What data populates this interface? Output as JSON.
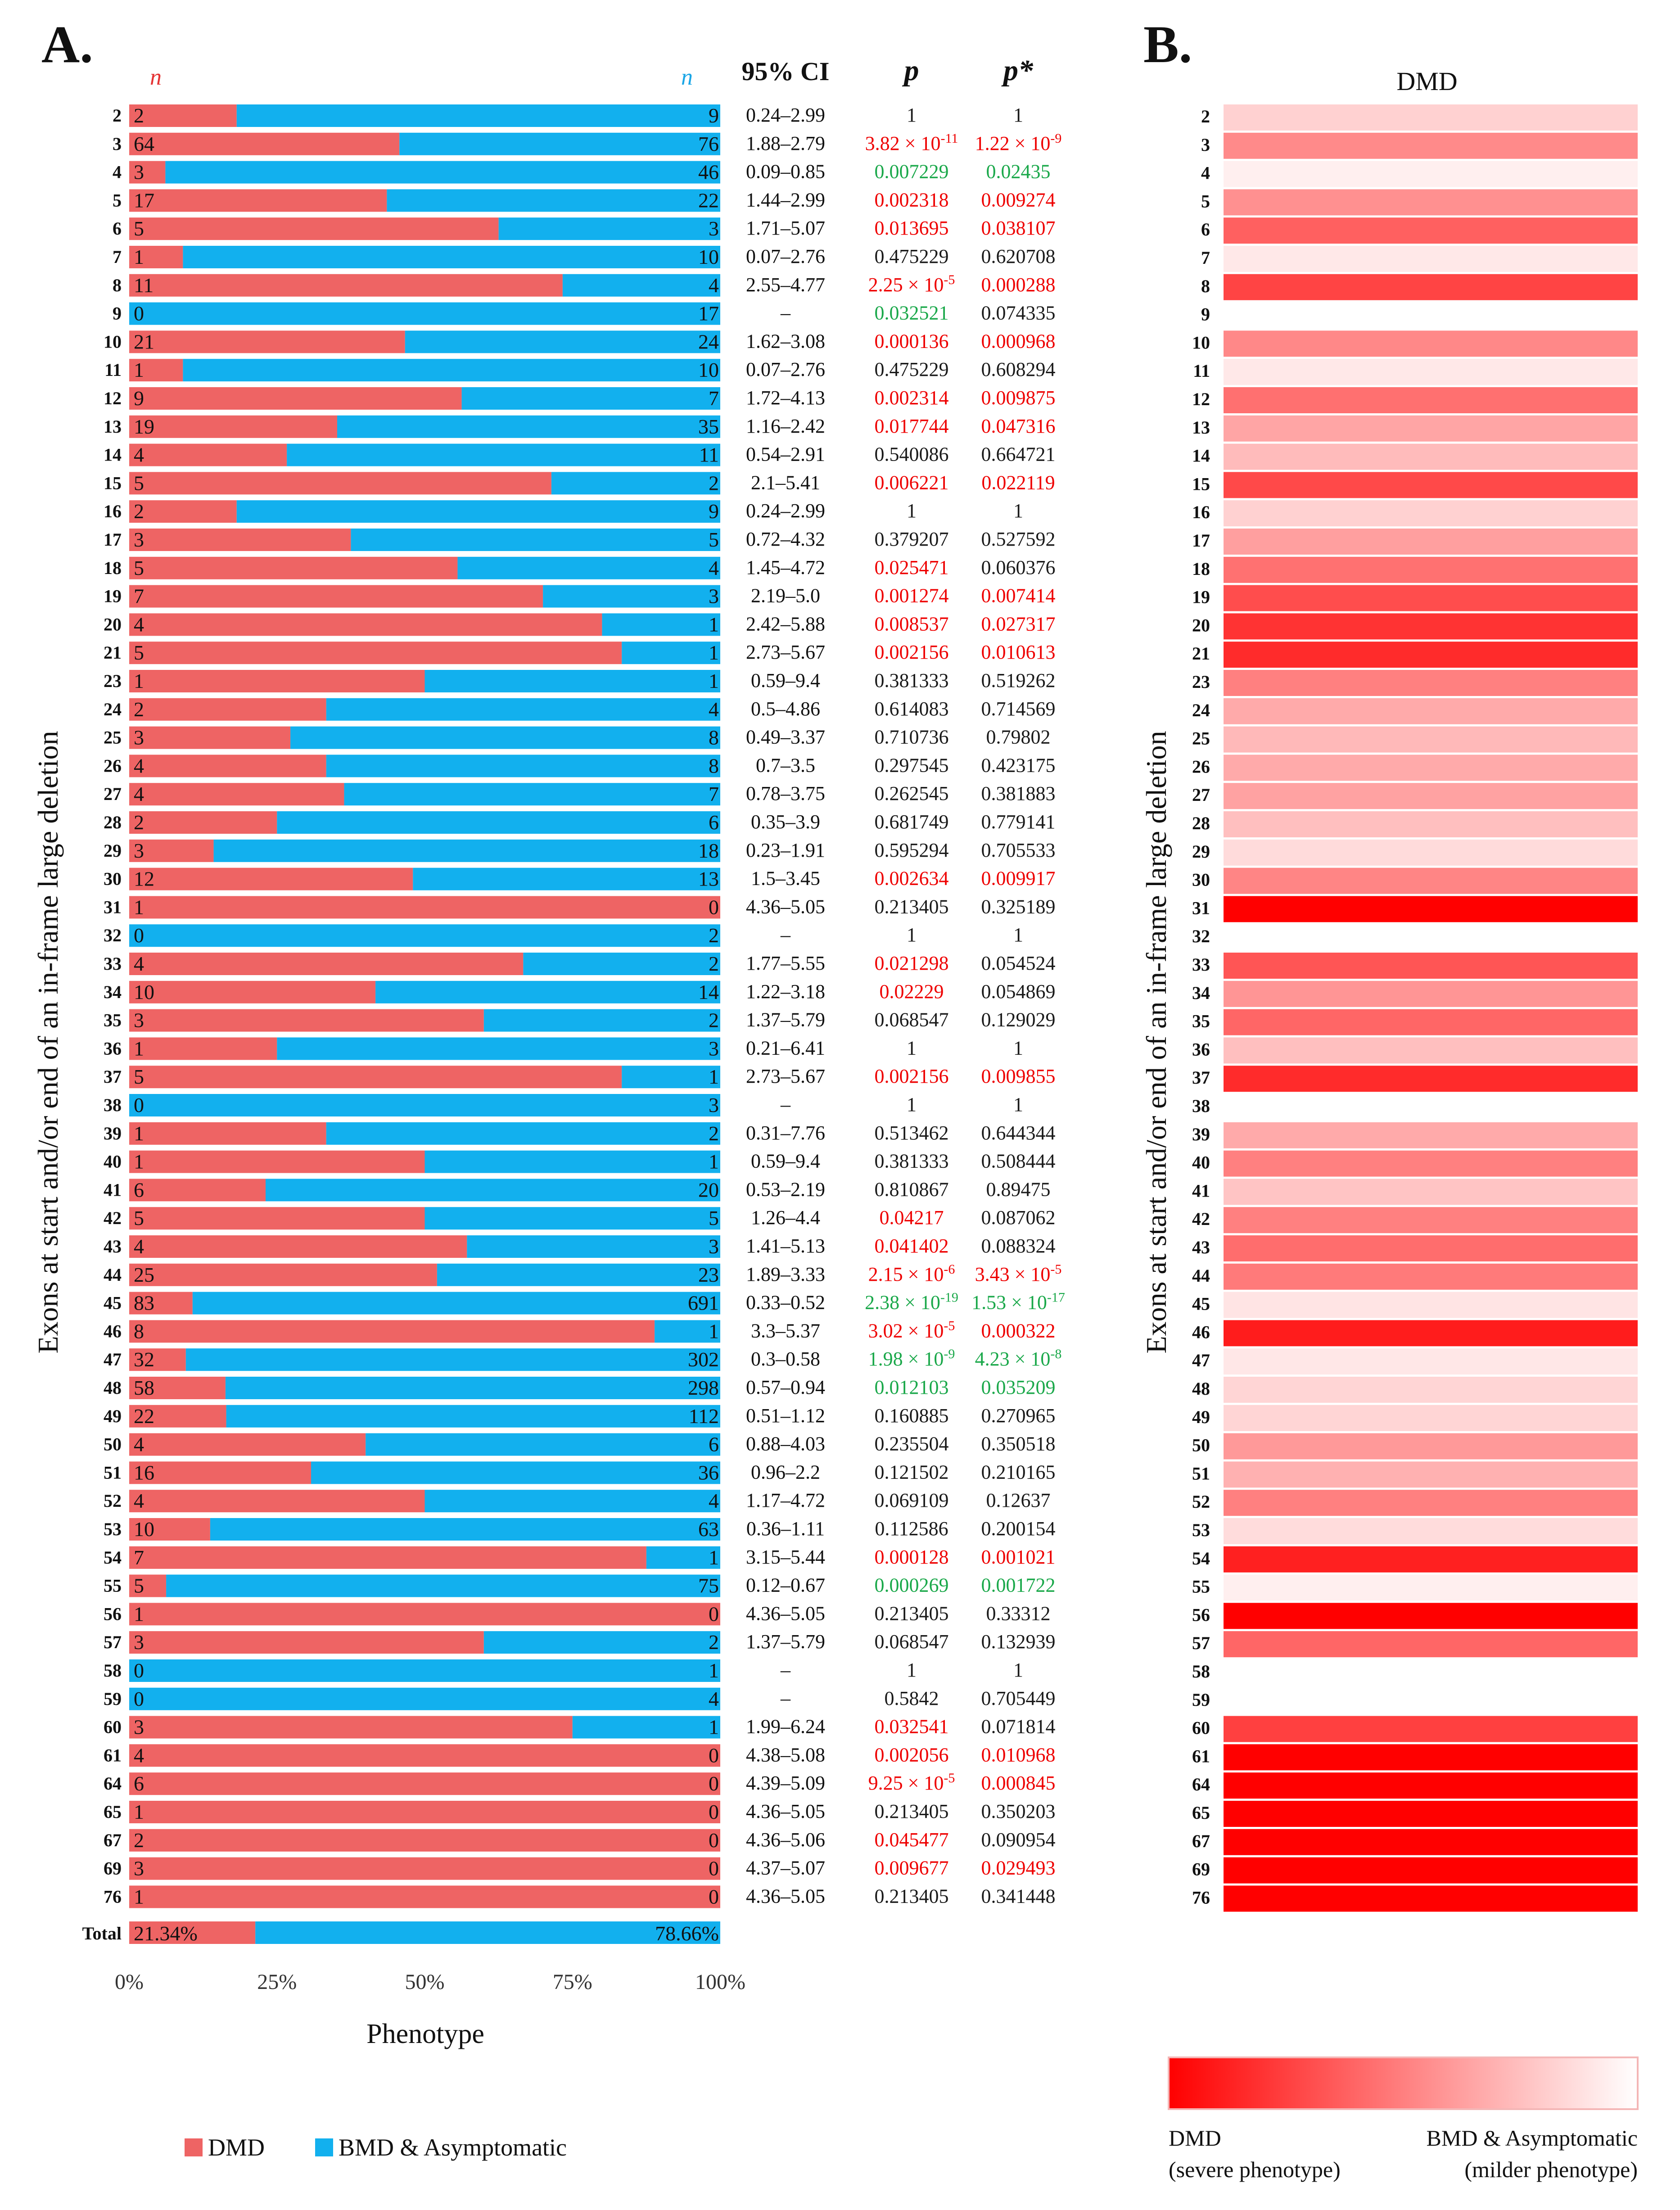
{
  "panel_a_label": "A.",
  "panel_b_label": "B.",
  "chart_data": [
    {
      "type": "bar",
      "stacked": true,
      "orientation": "horizontal",
      "ylabel": "Exons at start and/or end of an in-frame large deletion",
      "xlabel": "Phenotype",
      "xticks": [
        "0%",
        "25%",
        "50%",
        "75%",
        "100%"
      ],
      "n_left_header": "n",
      "n_right_header": "n",
      "columns": {
        "ci": "95% CI",
        "p": "p",
        "padj": "p*"
      },
      "legend": [
        "DMD",
        "BMD & Asymptomatic"
      ],
      "colors": {
        "dmd": "#ee6464",
        "bmd": "#12b0ee",
        "sig_high": "#ee0000",
        "sig_low": "#1aa84a",
        "ns": "#1a1a1a",
        "n_left": "#e53333",
        "n_right": "#1aa6e6"
      },
      "rows": [
        {
          "exon": "2",
          "dmd": 2,
          "bmd": 9,
          "ci": "0.24–2.99",
          "p": "1",
          "padj": "1",
          "p_sig": "ns",
          "padj_sig": "ns"
        },
        {
          "exon": "3",
          "dmd": 64,
          "bmd": 76,
          "ci": "1.88–2.79",
          "p": "3.82 × 10-11",
          "padj": "1.22 × 10-9",
          "p_sig": "high",
          "padj_sig": "high"
        },
        {
          "exon": "4",
          "dmd": 3,
          "bmd": 46,
          "ci": "0.09–0.85",
          "p": "0.007229",
          "padj": "0.02435",
          "p_sig": "low",
          "padj_sig": "low"
        },
        {
          "exon": "5",
          "dmd": 17,
          "bmd": 22,
          "ci": "1.44–2.99",
          "p": "0.002318",
          "padj": "0.009274",
          "p_sig": "high",
          "padj_sig": "high"
        },
        {
          "exon": "6",
          "dmd": 5,
          "bmd": 3,
          "ci": "1.71–5.07",
          "p": "0.013695",
          "padj": "0.038107",
          "p_sig": "high",
          "padj_sig": "high"
        },
        {
          "exon": "7",
          "dmd": 1,
          "bmd": 10,
          "ci": "0.07–2.76",
          "p": "0.475229",
          "padj": "0.620708",
          "p_sig": "ns",
          "padj_sig": "ns"
        },
        {
          "exon": "8",
          "dmd": 11,
          "bmd": 4,
          "ci": "2.55–4.77",
          "p": "2.25 × 10-5",
          "padj": "0.000288",
          "p_sig": "high",
          "padj_sig": "high"
        },
        {
          "exon": "9",
          "dmd": 0,
          "bmd": 17,
          "ci": "–",
          "p": "0.032521",
          "padj": "0.074335",
          "p_sig": "low",
          "padj_sig": "ns"
        },
        {
          "exon": "10",
          "dmd": 21,
          "bmd": 24,
          "ci": "1.62–3.08",
          "p": "0.000136",
          "padj": "0.000968",
          "p_sig": "high",
          "padj_sig": "high"
        },
        {
          "exon": "11",
          "dmd": 1,
          "bmd": 10,
          "ci": "0.07–2.76",
          "p": "0.475229",
          "padj": "0.608294",
          "p_sig": "ns",
          "padj_sig": "ns"
        },
        {
          "exon": "12",
          "dmd": 9,
          "bmd": 7,
          "ci": "1.72–4.13",
          "p": "0.002314",
          "padj": "0.009875",
          "p_sig": "high",
          "padj_sig": "high"
        },
        {
          "exon": "13",
          "dmd": 19,
          "bmd": 35,
          "ci": "1.16–2.42",
          "p": "0.017744",
          "padj": "0.047316",
          "p_sig": "high",
          "padj_sig": "high"
        },
        {
          "exon": "14",
          "dmd": 4,
          "bmd": 11,
          "ci": "0.54–2.91",
          "p": "0.540086",
          "padj": "0.664721",
          "p_sig": "ns",
          "padj_sig": "ns"
        },
        {
          "exon": "15",
          "dmd": 5,
          "bmd": 2,
          "ci": "2.1–5.41",
          "p": "0.006221",
          "padj": "0.022119",
          "p_sig": "high",
          "padj_sig": "high"
        },
        {
          "exon": "16",
          "dmd": 2,
          "bmd": 9,
          "ci": "0.24–2.99",
          "p": "1",
          "padj": "1",
          "p_sig": "ns",
          "padj_sig": "ns"
        },
        {
          "exon": "17",
          "dmd": 3,
          "bmd": 5,
          "ci": "0.72–4.32",
          "p": "0.379207",
          "padj": "0.527592",
          "p_sig": "ns",
          "padj_sig": "ns"
        },
        {
          "exon": "18",
          "dmd": 5,
          "bmd": 4,
          "ci": "1.45–4.72",
          "p": "0.025471",
          "padj": "0.060376",
          "p_sig": "high",
          "padj_sig": "ns"
        },
        {
          "exon": "19",
          "dmd": 7,
          "bmd": 3,
          "ci": "2.19–5.0",
          "p": "0.001274",
          "padj": "0.007414",
          "p_sig": "high",
          "padj_sig": "high"
        },
        {
          "exon": "20",
          "dmd": 4,
          "bmd": 1,
          "ci": "2.42–5.88",
          "p": "0.008537",
          "padj": "0.027317",
          "p_sig": "high",
          "padj_sig": "high"
        },
        {
          "exon": "21",
          "dmd": 5,
          "bmd": 1,
          "ci": "2.73–5.67",
          "p": "0.002156",
          "padj": "0.010613",
          "p_sig": "high",
          "padj_sig": "high"
        },
        {
          "exon": "23",
          "dmd": 1,
          "bmd": 1,
          "ci": "0.59–9.4",
          "p": "0.381333",
          "padj": "0.519262",
          "p_sig": "ns",
          "padj_sig": "ns"
        },
        {
          "exon": "24",
          "dmd": 2,
          "bmd": 4,
          "ci": "0.5–4.86",
          "p": "0.614083",
          "padj": "0.714569",
          "p_sig": "ns",
          "padj_sig": "ns"
        },
        {
          "exon": "25",
          "dmd": 3,
          "bmd": 8,
          "ci": "0.49–3.37",
          "p": "0.710736",
          "padj": "0.79802",
          "p_sig": "ns",
          "padj_sig": "ns"
        },
        {
          "exon": "26",
          "dmd": 4,
          "bmd": 8,
          "ci": "0.7–3.5",
          "p": "0.297545",
          "padj": "0.423175",
          "p_sig": "ns",
          "padj_sig": "ns"
        },
        {
          "exon": "27",
          "dmd": 4,
          "bmd": 7,
          "ci": "0.78–3.75",
          "p": "0.262545",
          "padj": "0.381883",
          "p_sig": "ns",
          "padj_sig": "ns"
        },
        {
          "exon": "28",
          "dmd": 2,
          "bmd": 6,
          "ci": "0.35–3.9",
          "p": "0.681749",
          "padj": "0.779141",
          "p_sig": "ns",
          "padj_sig": "ns"
        },
        {
          "exon": "29",
          "dmd": 3,
          "bmd": 18,
          "ci": "0.23–1.91",
          "p": "0.595294",
          "padj": "0.705533",
          "p_sig": "ns",
          "padj_sig": "ns"
        },
        {
          "exon": "30",
          "dmd": 12,
          "bmd": 13,
          "ci": "1.5–3.45",
          "p": "0.002634",
          "padj": "0.009917",
          "p_sig": "high",
          "padj_sig": "high"
        },
        {
          "exon": "31",
          "dmd": 1,
          "bmd": 0,
          "ci": "4.36–5.05",
          "p": "0.213405",
          "padj": "0.325189",
          "p_sig": "ns",
          "padj_sig": "ns"
        },
        {
          "exon": "32",
          "dmd": 0,
          "bmd": 2,
          "ci": "–",
          "p": "1",
          "padj": "1",
          "p_sig": "ns",
          "padj_sig": "ns"
        },
        {
          "exon": "33",
          "dmd": 4,
          "bmd": 2,
          "ci": "1.77–5.55",
          "p": "0.021298",
          "padj": "0.054524",
          "p_sig": "high",
          "padj_sig": "ns"
        },
        {
          "exon": "34",
          "dmd": 10,
          "bmd": 14,
          "ci": "1.22–3.18",
          "p": "0.02229",
          "padj": "0.054869",
          "p_sig": "high",
          "padj_sig": "ns"
        },
        {
          "exon": "35",
          "dmd": 3,
          "bmd": 2,
          "ci": "1.37–5.79",
          "p": "0.068547",
          "padj": "0.129029",
          "p_sig": "ns",
          "padj_sig": "ns"
        },
        {
          "exon": "36",
          "dmd": 1,
          "bmd": 3,
          "ci": "0.21–6.41",
          "p": "1",
          "padj": "1",
          "p_sig": "ns",
          "padj_sig": "ns"
        },
        {
          "exon": "37",
          "dmd": 5,
          "bmd": 1,
          "ci": "2.73–5.67",
          "p": "0.002156",
          "padj": "0.009855",
          "p_sig": "high",
          "padj_sig": "high"
        },
        {
          "exon": "38",
          "dmd": 0,
          "bmd": 3,
          "ci": "–",
          "p": "1",
          "padj": "1",
          "p_sig": "ns",
          "padj_sig": "ns"
        },
        {
          "exon": "39",
          "dmd": 1,
          "bmd": 2,
          "ci": "0.31–7.76",
          "p": "0.513462",
          "padj": "0.644344",
          "p_sig": "ns",
          "padj_sig": "ns"
        },
        {
          "exon": "40",
          "dmd": 1,
          "bmd": 1,
          "ci": "0.59–9.4",
          "p": "0.381333",
          "padj": "0.508444",
          "p_sig": "ns",
          "padj_sig": "ns"
        },
        {
          "exon": "41",
          "dmd": 6,
          "bmd": 20,
          "ci": "0.53–2.19",
          "p": "0.810867",
          "padj": "0.89475",
          "p_sig": "ns",
          "padj_sig": "ns"
        },
        {
          "exon": "42",
          "dmd": 5,
          "bmd": 5,
          "ci": "1.26–4.4",
          "p": "0.04217",
          "padj": "0.087062",
          "p_sig": "high",
          "padj_sig": "ns"
        },
        {
          "exon": "43",
          "dmd": 4,
          "bmd": 3,
          "ci": "1.41–5.13",
          "p": "0.041402",
          "padj": "0.088324",
          "p_sig": "high",
          "padj_sig": "ns"
        },
        {
          "exon": "44",
          "dmd": 25,
          "bmd": 23,
          "ci": "1.89–3.33",
          "p": "2.15 × 10-6",
          "padj": "3.43 × 10-5",
          "p_sig": "high",
          "padj_sig": "high"
        },
        {
          "exon": "45",
          "dmd": 83,
          "bmd": 691,
          "ci": "0.33–0.52",
          "p": "2.38 × 10-19",
          "padj": "1.53 × 10-17",
          "p_sig": "low",
          "padj_sig": "low"
        },
        {
          "exon": "46",
          "dmd": 8,
          "bmd": 1,
          "ci": "3.3–5.37",
          "p": "3.02 × 10-5",
          "padj": "0.000322",
          "p_sig": "high",
          "padj_sig": "high"
        },
        {
          "exon": "47",
          "dmd": 32,
          "bmd": 302,
          "ci": "0.3–0.58",
          "p": "1.98 × 10-9",
          "padj": "4.23 × 10-8",
          "p_sig": "low",
          "padj_sig": "low"
        },
        {
          "exon": "48",
          "dmd": 58,
          "bmd": 298,
          "ci": "0.57–0.94",
          "p": "0.012103",
          "padj": "0.035209",
          "p_sig": "low",
          "padj_sig": "low"
        },
        {
          "exon": "49",
          "dmd": 22,
          "bmd": 112,
          "ci": "0.51–1.12",
          "p": "0.160885",
          "padj": "0.270965",
          "p_sig": "ns",
          "padj_sig": "ns"
        },
        {
          "exon": "50",
          "dmd": 4,
          "bmd": 6,
          "ci": "0.88–4.03",
          "p": "0.235504",
          "padj": "0.350518",
          "p_sig": "ns",
          "padj_sig": "ns"
        },
        {
          "exon": "51",
          "dmd": 16,
          "bmd": 36,
          "ci": "0.96–2.2",
          "p": "0.121502",
          "padj": "0.210165",
          "p_sig": "ns",
          "padj_sig": "ns"
        },
        {
          "exon": "52",
          "dmd": 4,
          "bmd": 4,
          "ci": "1.17–4.72",
          "p": "0.069109",
          "padj": "0.12637",
          "p_sig": "ns",
          "padj_sig": "ns"
        },
        {
          "exon": "53",
          "dmd": 10,
          "bmd": 63,
          "ci": "0.36–1.11",
          "p": "0.112586",
          "padj": "0.200154",
          "p_sig": "ns",
          "padj_sig": "ns"
        },
        {
          "exon": "54",
          "dmd": 7,
          "bmd": 1,
          "ci": "3.15–5.44",
          "p": "0.000128",
          "padj": "0.001021",
          "p_sig": "high",
          "padj_sig": "high"
        },
        {
          "exon": "55",
          "dmd": 5,
          "bmd": 75,
          "ci": "0.12–0.67",
          "p": "0.000269",
          "padj": "0.001722",
          "p_sig": "low",
          "padj_sig": "low"
        },
        {
          "exon": "56",
          "dmd": 1,
          "bmd": 0,
          "ci": "4.36–5.05",
          "p": "0.213405",
          "padj": "0.33312",
          "p_sig": "ns",
          "padj_sig": "ns"
        },
        {
          "exon": "57",
          "dmd": 3,
          "bmd": 2,
          "ci": "1.37–5.79",
          "p": "0.068547",
          "padj": "0.132939",
          "p_sig": "ns",
          "padj_sig": "ns"
        },
        {
          "exon": "58",
          "dmd": 0,
          "bmd": 1,
          "ci": "–",
          "p": "1",
          "padj": "1",
          "p_sig": "ns",
          "padj_sig": "ns"
        },
        {
          "exon": "59",
          "dmd": 0,
          "bmd": 4,
          "ci": "–",
          "p": "0.5842",
          "padj": "0.705449",
          "p_sig": "ns",
          "padj_sig": "ns"
        },
        {
          "exon": "60",
          "dmd": 3,
          "bmd": 1,
          "ci": "1.99–6.24",
          "p": "0.032541",
          "padj": "0.071814",
          "p_sig": "high",
          "padj_sig": "ns"
        },
        {
          "exon": "61",
          "dmd": 4,
          "bmd": 0,
          "ci": "4.38–5.08",
          "p": "0.002056",
          "padj": "0.010968",
          "p_sig": "high",
          "padj_sig": "high"
        },
        {
          "exon": "64",
          "dmd": 6,
          "bmd": 0,
          "ci": "4.39–5.09",
          "p": "9.25 × 10-5",
          "padj": "0.000845",
          "p_sig": "high",
          "padj_sig": "high"
        },
        {
          "exon": "65",
          "dmd": 1,
          "bmd": 0,
          "ci": "4.36–5.05",
          "p": "0.213405",
          "padj": "0.350203",
          "p_sig": "ns",
          "padj_sig": "ns"
        },
        {
          "exon": "67",
          "dmd": 2,
          "bmd": 0,
          "ci": "4.36–5.06",
          "p": "0.045477",
          "padj": "0.090954",
          "p_sig": "high",
          "padj_sig": "ns"
        },
        {
          "exon": "69",
          "dmd": 3,
          "bmd": 0,
          "ci": "4.37–5.07",
          "p": "0.009677",
          "padj": "0.029493",
          "p_sig": "high",
          "padj_sig": "high"
        },
        {
          "exon": "76",
          "dmd": 1,
          "bmd": 0,
          "ci": "4.36–5.05",
          "p": "0.213405",
          "padj": "0.341448",
          "p_sig": "ns",
          "padj_sig": "ns"
        }
      ],
      "total": {
        "label": "Total",
        "dmd_pct": "21.34%",
        "bmd_pct": "78.66%",
        "dmd_frac": 0.2134
      }
    },
    {
      "type": "heatmap",
      "title": "DMD",
      "ylabel": "Exons at start and/or end of an in-frame large deletion",
      "colorbar_min_label": "DMD",
      "colorbar_min_sub": "(severe phenotype)",
      "colorbar_max_label": "BMD & Asymptomatic",
      "colorbar_max_sub": "(milder phenotype)",
      "colors": {
        "severe": "#ff0000",
        "mild": "#ffffff"
      },
      "value": "DMD fraction of patients per exon (same rows as panel A)"
    }
  ]
}
